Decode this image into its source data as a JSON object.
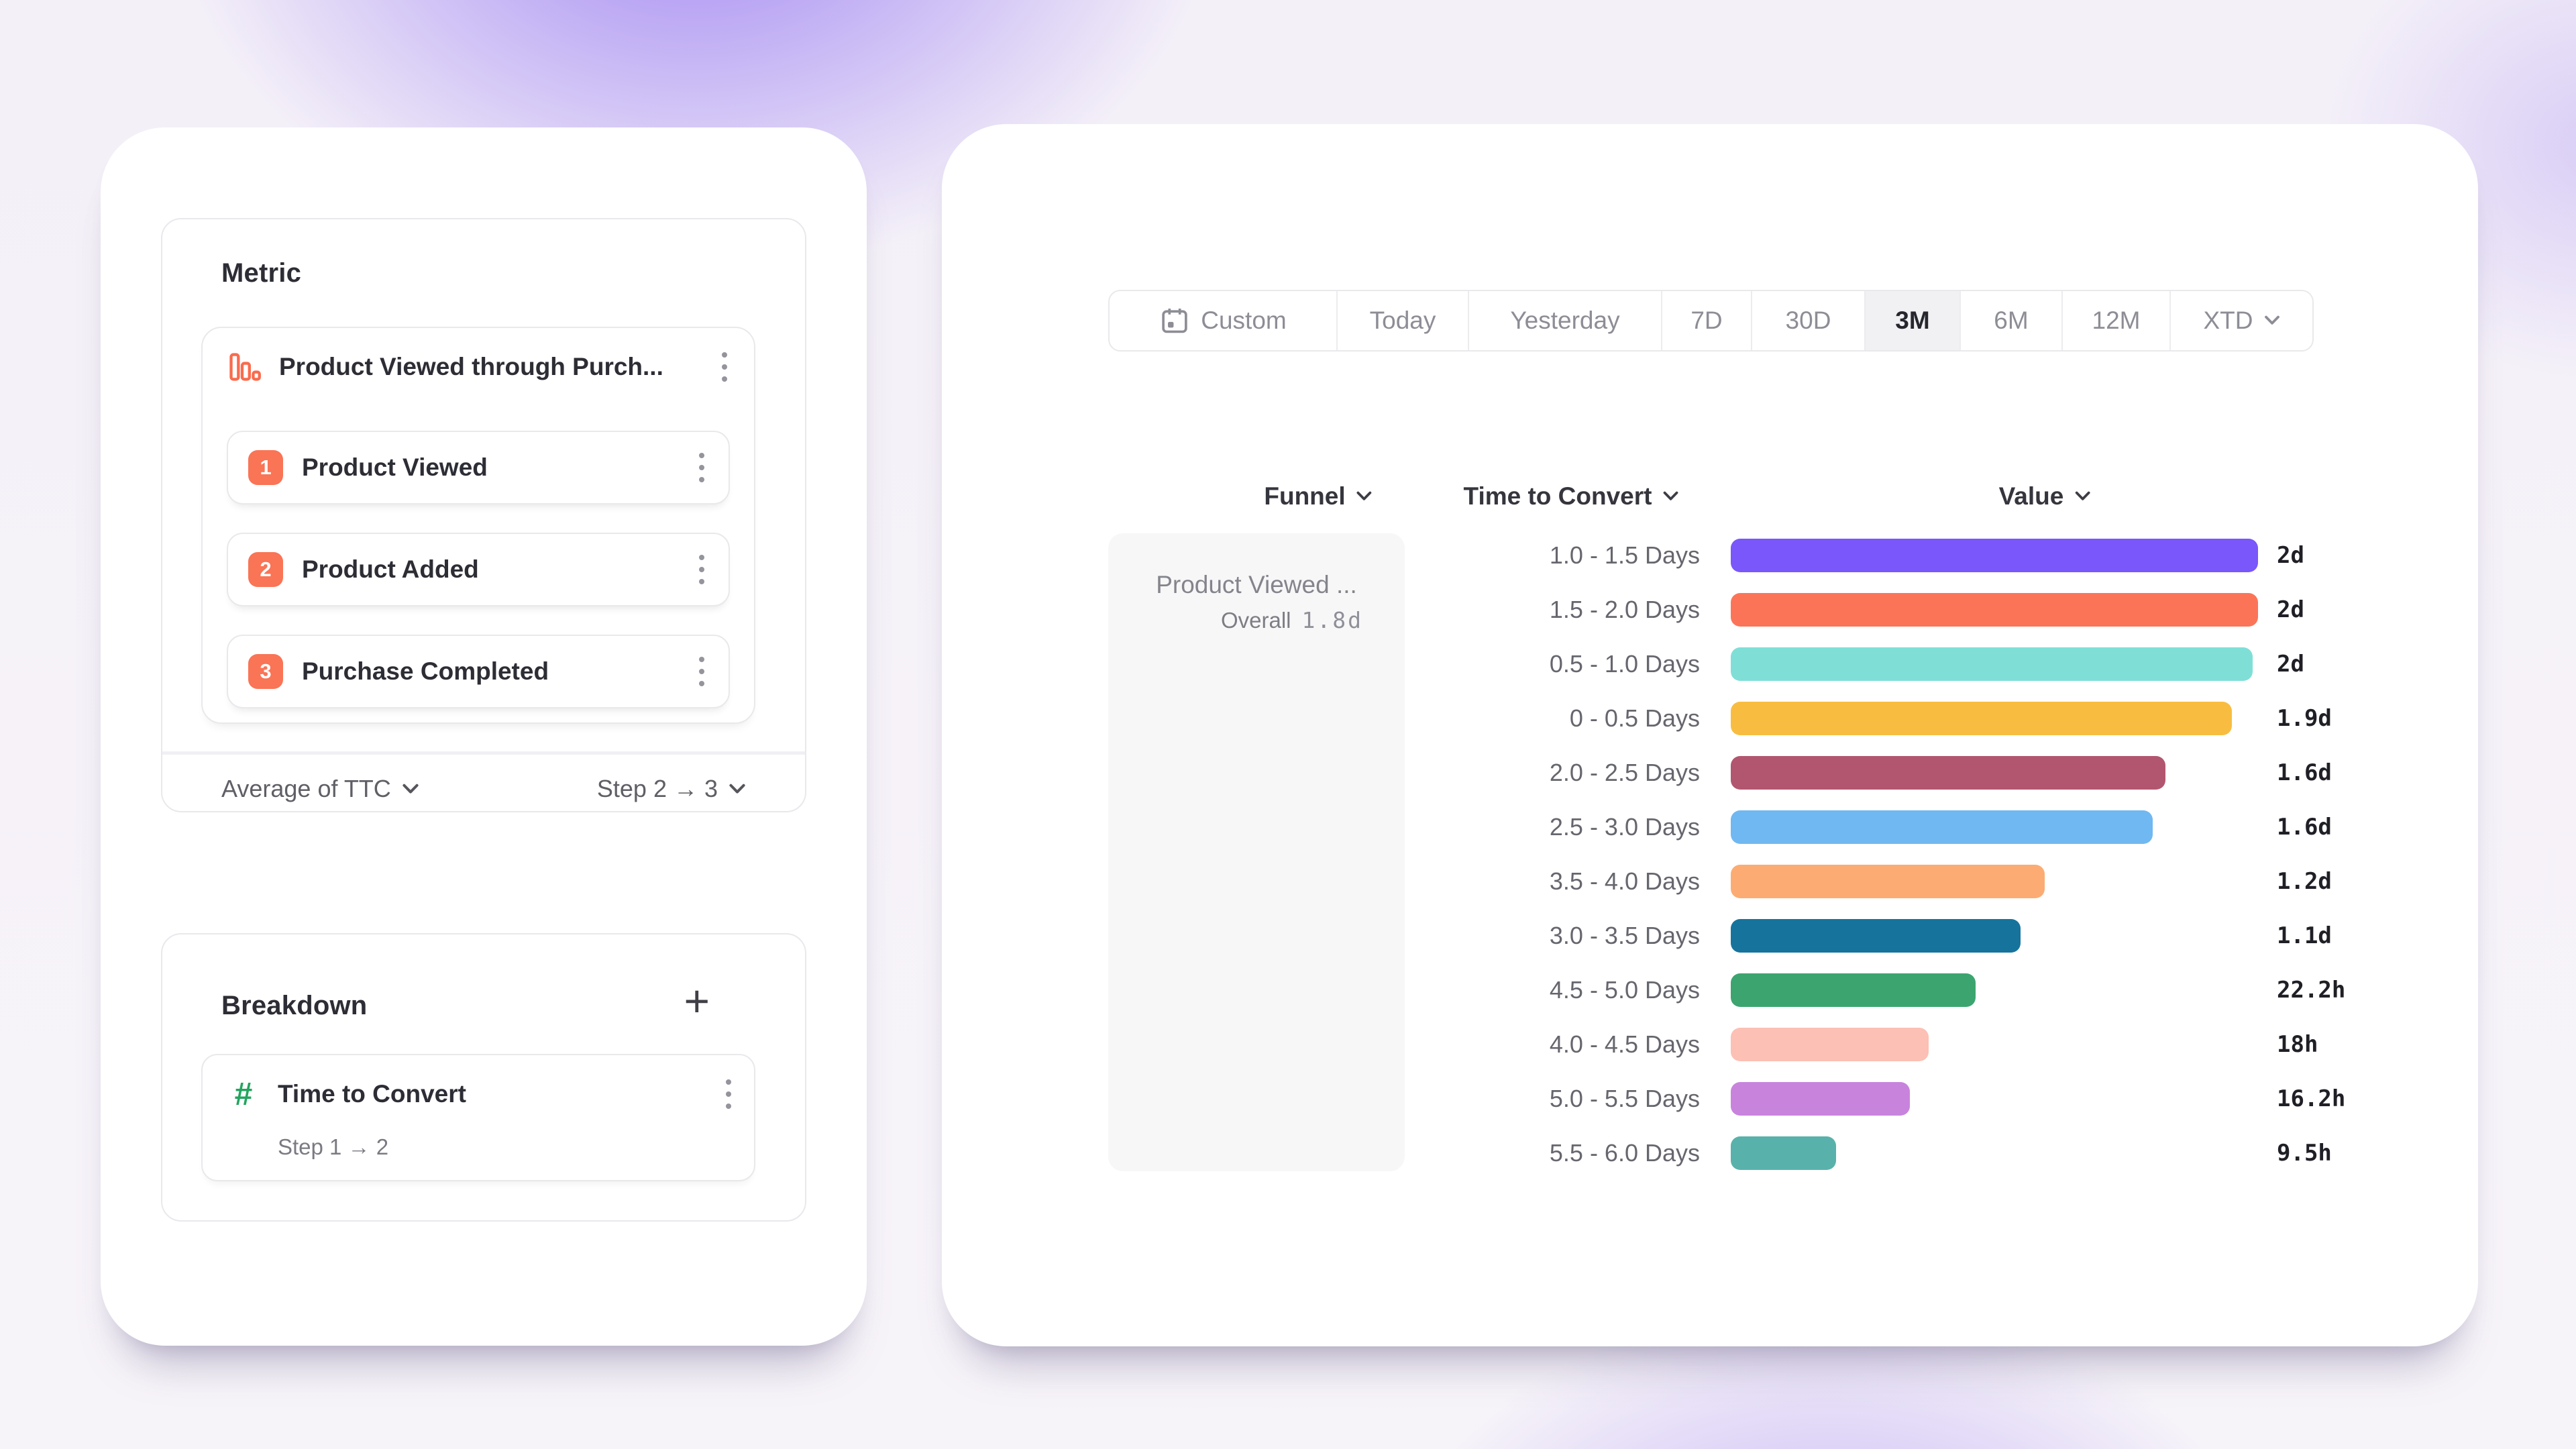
{
  "metric_panel": {
    "title": "Metric",
    "funnel": {
      "icon": "funnel-chart-icon",
      "name": "Product Viewed through Purch...",
      "steps": [
        {
          "number": "1",
          "label": "Product Viewed"
        },
        {
          "number": "2",
          "label": "Product Added"
        },
        {
          "number": "3",
          "label": "Purchase Completed"
        }
      ],
      "aggregation_label": "Average of TTC",
      "step_range_label": "Step 2 → 3"
    }
  },
  "breakdown_panel": {
    "title": "Breakdown",
    "add_button": "+",
    "item": {
      "icon_glyph": "#",
      "label": "Time to Convert",
      "sublabel": "Step 1 → 2"
    }
  },
  "toolbar": {
    "date_ranges": [
      "Custom",
      "Today",
      "Yesterday",
      "7D",
      "30D",
      "3M",
      "6M",
      "12M",
      "XTD"
    ],
    "selected": "3M"
  },
  "table": {
    "funnel_header": "Funnel",
    "breakdown_header": "Time to Convert",
    "value_header": "Value",
    "funnel_cell": {
      "name": "Product Viewed ...",
      "overall_label": "Overall",
      "overall_value": "1.8d"
    }
  },
  "chart_data": {
    "type": "bar",
    "orientation": "horizontal",
    "title": "Time to Convert breakdown of Product Viewed through Purchase funnel",
    "categories": [
      "1.0 - 1.5 Days",
      "1.5 - 2.0 Days",
      "0.5 - 1.0 Days",
      "0 - 0.5 Days",
      "2.0 - 2.5 Days",
      "2.5 - 3.0 Days",
      "3.5 - 4.0 Days",
      "3.0 - 3.5 Days",
      "4.5 - 5.0 Days",
      "4.0 - 4.5 Days",
      "5.0 - 5.5 Days",
      "5.5 - 6.0 Days"
    ],
    "values_display": [
      "2d",
      "2d",
      "2d",
      "1.9d",
      "1.6d",
      "1.6d",
      "1.2d",
      "1.1d",
      "22.2h",
      "18h",
      "16.2h",
      "9.5h"
    ],
    "values_days": [
      2.0,
      2.0,
      1.98,
      1.9,
      1.65,
      1.6,
      1.19,
      1.1,
      0.93,
      0.75,
      0.68,
      0.4
    ],
    "xlim_days": [
      0,
      2.0
    ],
    "bar_colors": [
      "#7957fa",
      "#fc7458",
      "#7fdfd7",
      "#f8bd40",
      "#b2566f",
      "#70b8f1",
      "#fcac73",
      "#16749c",
      "#3ca56f",
      "#fcc0b4",
      "#c884dd",
      "#58b2ab"
    ]
  },
  "colors": {
    "accent_orange": "#fa7456",
    "accent_green": "#23a55f",
    "text_dark": "#2d2d35",
    "text_gray": "#8d8d96",
    "border": "#e9e9ec",
    "panel_gray": "#f7f7f8",
    "background_glow": "#9273f1"
  }
}
